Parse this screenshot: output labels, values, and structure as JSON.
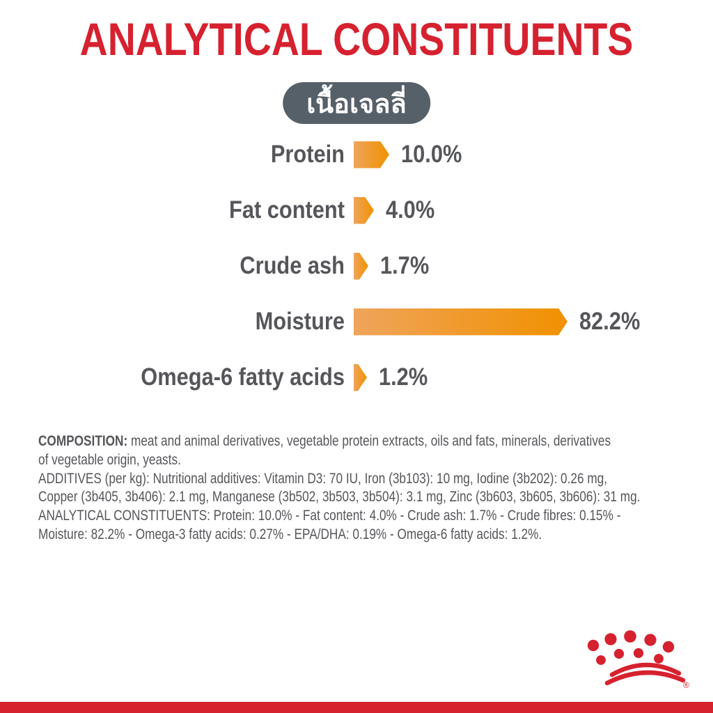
{
  "page": {
    "background": "#ffffff",
    "accent_red": "#d6212f",
    "text_gray": "#55565a"
  },
  "header": {
    "title": "ANALYTICAL CONSTITUENTS"
  },
  "badge": {
    "label_th": "เนื้อเจลลี่",
    "background": "#566069",
    "text_color": "#ffffff"
  },
  "chart_data": {
    "type": "bar",
    "orientation": "horizontal",
    "unit": "%",
    "categories": [
      "Protein",
      "Fat content",
      "Crude ash",
      "Moisture",
      "Omega-6 fatty acids"
    ],
    "values": [
      10.0,
      4.0,
      1.7,
      82.2,
      1.2
    ],
    "value_labels": [
      "10.0%",
      "4.0%",
      "1.7%",
      "82.2%",
      "1.2%"
    ],
    "bar_gradient": [
      "#efa45b",
      "#f19100"
    ],
    "bar_shape": "arrow-right",
    "xlim": [
      0,
      100
    ],
    "grid": false,
    "legend": false,
    "axes_visible": false
  },
  "legal": {
    "lines": [
      {
        "bold": "COMPOSITION:",
        "text": " meat and animal derivatives, vegetable protein extracts, oils and fats, minerals, derivatives"
      },
      {
        "bold": "",
        "text": "of vegetable origin, yeasts."
      },
      {
        "bold": "",
        "text": "ADDITIVES (per kg): Nutritional additives: Vitamin D3: 70 IU, Iron (3b103): 10 mg, Iodine (3b202): 0.26 mg,"
      },
      {
        "bold": "",
        "text": "Copper (3b405, 3b406): 2.1 mg, Manganese (3b502, 3b503, 3b504): 3.1 mg, Zinc (3b603, 3b605, 3b606): 31 mg."
      },
      {
        "bold": "",
        "text": "ANALYTICAL CONSTITUENTS: Protein: 10.0% - Fat content: 4.0% - Crude ash: 1.7% - Crude fibres: 0.15% -"
      },
      {
        "bold": "",
        "text": "Moisture: 82.2% - Omega-3 fatty acids: 0.27% - EPA/DHA: 0.19% - Omega-6 fatty acids: 1.2%."
      }
    ]
  },
  "footer": {
    "brand_logo": "royal-canin-crown",
    "registered_mark": "®",
    "bar_color": "#d6212f"
  }
}
